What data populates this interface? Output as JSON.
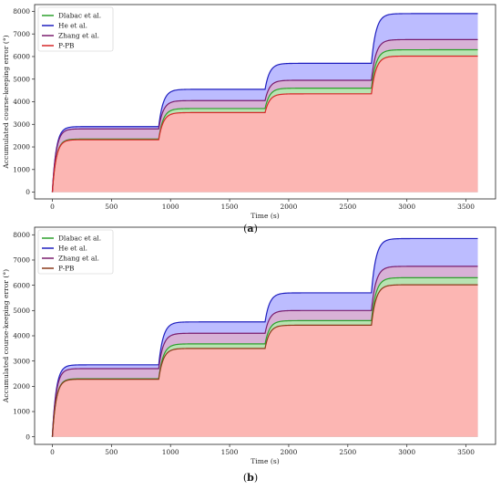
{
  "chart_data": [
    {
      "type": "area",
      "panel": "a",
      "caption_letter": "a",
      "xlabel": "Time (s)",
      "ylabel": "Accumulated course-keeping error (°)",
      "xlim": [
        -150,
        3750
      ],
      "ylim": [
        -300,
        8300
      ],
      "xticks": [
        0,
        500,
        1000,
        1500,
        2000,
        2500,
        3000,
        3500
      ],
      "yticks": [
        0,
        1000,
        2000,
        3000,
        4000,
        5000,
        6000,
        7000,
        8000
      ],
      "legend_position": "top-left",
      "grid": false,
      "series": [
        {
          "name": "Dlabac et al.",
          "color": "#2ca02c",
          "fill": "#b6e6b0",
          "x": [
            0,
            900,
            1800,
            2700,
            3600
          ],
          "plateaus": [
            2350,
            3700,
            4600,
            6300
          ],
          "y_end": 6300
        },
        {
          "name": "He et al.",
          "color": "#1f1fbf",
          "fill": "#b8b8ff",
          "x": [
            0,
            900,
            1800,
            2700,
            3600
          ],
          "plateaus": [
            2900,
            4550,
            5700,
            7900
          ],
          "y_end": 7900
        },
        {
          "name": "Zhang et al.",
          "color": "#7a1d6e",
          "fill": "#d9b0d4",
          "x": [
            0,
            900,
            1800,
            2700,
            3600
          ],
          "plateaus": [
            2800,
            4050,
            4950,
            6750
          ],
          "y_end": 6750
        },
        {
          "name": "P-PB",
          "color": "#d62728",
          "fill": "#ffb3b3",
          "x": [
            0,
            900,
            1800,
            2700,
            3600
          ],
          "plateaus": [
            2320,
            3520,
            4350,
            6020
          ],
          "y_end": 6020
        }
      ]
    },
    {
      "type": "area",
      "panel": "b",
      "caption_letter": "b",
      "xlabel": "Time (s)",
      "ylabel": "Accumulated course-keeping error (°)",
      "xlim": [
        -150,
        3750
      ],
      "ylim": [
        -300,
        8300
      ],
      "xticks": [
        0,
        500,
        1000,
        1500,
        2000,
        2500,
        3000,
        3500
      ],
      "yticks": [
        0,
        1000,
        2000,
        3000,
        4000,
        5000,
        6000,
        7000,
        8000
      ],
      "legend_position": "top-left",
      "grid": false,
      "series": [
        {
          "name": "Dlabac et al.",
          "color": "#2ca02c",
          "fill": "#b6e6b0",
          "x": [
            0,
            900,
            1800,
            2700,
            3600
          ],
          "plateaus": [
            2300,
            3680,
            4600,
            6300
          ],
          "y_end": 6300
        },
        {
          "name": "He et al.",
          "color": "#1f1fbf",
          "fill": "#b8b8ff",
          "x": [
            0,
            900,
            1800,
            2700,
            3600
          ],
          "plateaus": [
            2850,
            4550,
            5700,
            7850
          ],
          "y_end": 7850
        },
        {
          "name": "Zhang et al.",
          "color": "#7a1d6e",
          "fill": "#d9b0d4",
          "x": [
            0,
            900,
            1800,
            2700,
            3600
          ],
          "plateaus": [
            2700,
            4100,
            5000,
            6750
          ],
          "y_end": 6750
        },
        {
          "name": "P-PB",
          "color": "#8b3a1a",
          "fill": "#ffb3b3",
          "x": [
            0,
            900,
            1800,
            2700,
            3600
          ],
          "plateaus": [
            2280,
            3500,
            4420,
            6020
          ],
          "y_end": 6020
        }
      ]
    }
  ]
}
